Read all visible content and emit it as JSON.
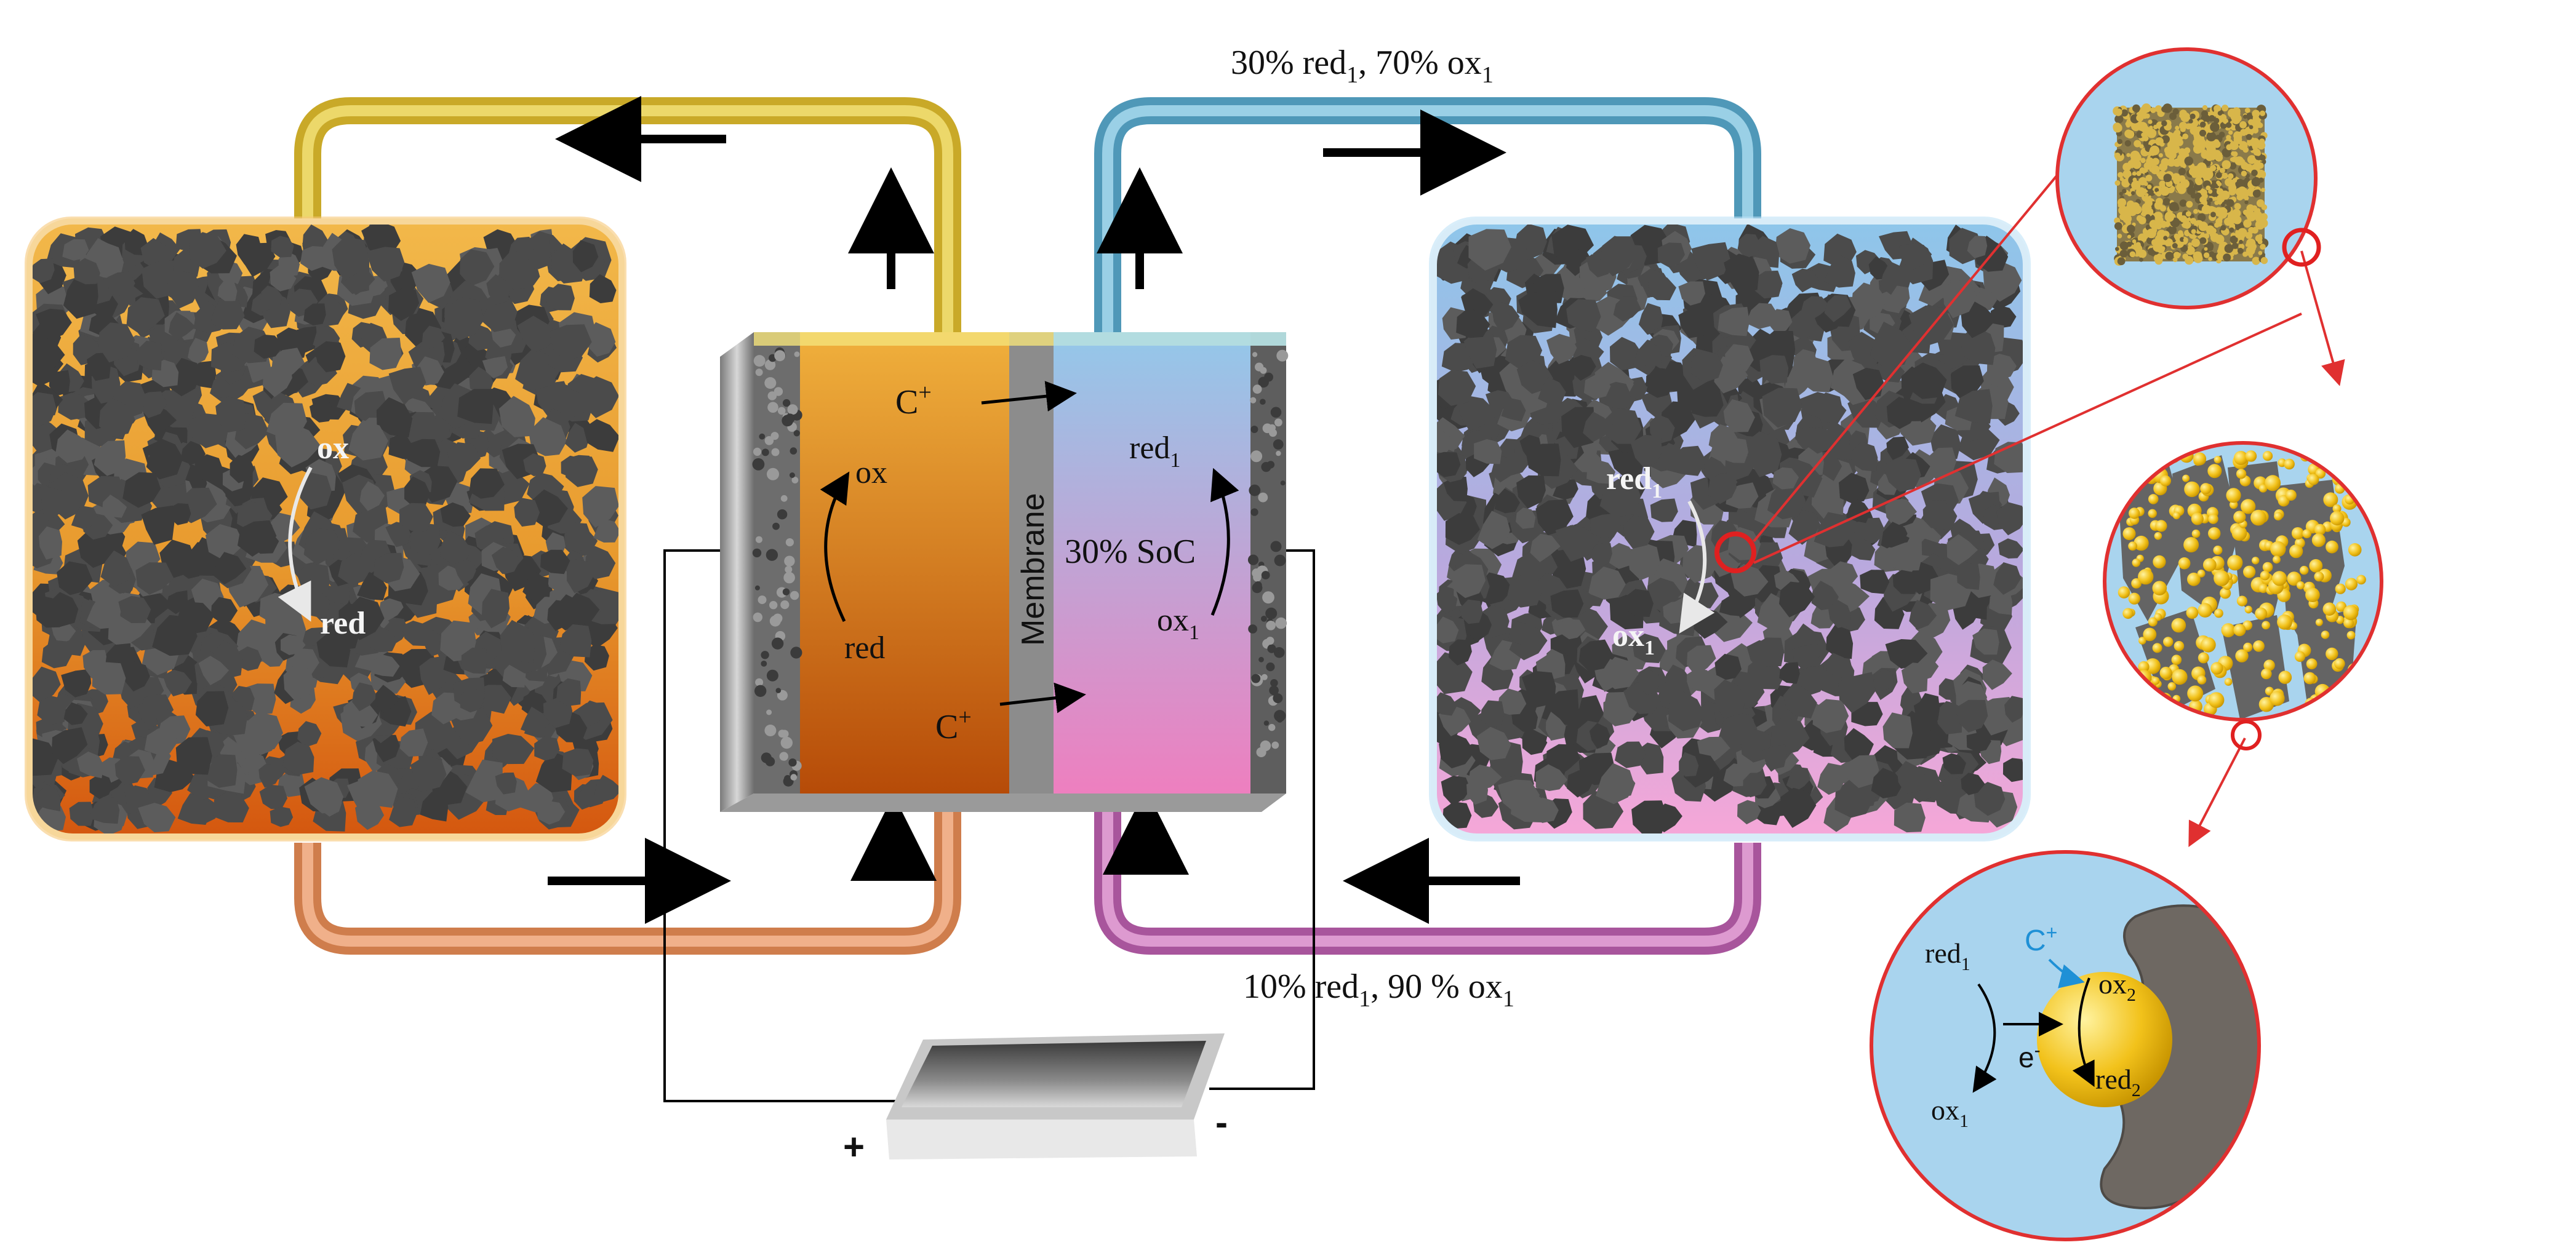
{
  "labels": {
    "top_flow": {
      "a": "30% red",
      "a_sub": "1",
      "b": ", 70% ox",
      "b_sub": "1"
    },
    "bottom_flow": {
      "a": "10% red",
      "a_sub": "1",
      "b": ", 90 % ox",
      "b_sub": "1"
    },
    "left_tank": {
      "ox": "ox",
      "red": "red"
    },
    "right_tank": {
      "red": "red",
      "red_sub": "1",
      "ox": "ox",
      "ox_sub": "1"
    },
    "cell": {
      "ox": "ox",
      "red": "red",
      "c_top": "C",
      "c_top_sup": "+",
      "c_bottom": "C",
      "c_bottom_sup": "+",
      "membrane": "Membrane",
      "red1": "red",
      "red1_sub": "1",
      "ox1": "ox",
      "ox1_sub": "1",
      "soc": "30% SoC"
    },
    "battery": {
      "plus": "+",
      "minus": "-"
    },
    "particle_zoom": {
      "red1": "red",
      "red1_sub": "1",
      "ox1": "ox",
      "ox1_sub": "1",
      "c_plus": "C",
      "c_plus_sup": "+",
      "e_minus": "e",
      "e_minus_sup": "-",
      "ox2": "ox",
      "ox2_sub": "2",
      "red2": "red",
      "red2_sub": "2"
    }
  },
  "colors": {
    "left_tank_top": "#f2b84a",
    "left_tank_bottom": "#d85e12",
    "right_tank_top": "#8ec6ea",
    "right_tank_bottom": "#f5a3d6",
    "yellow_pipe": "#d3b93a",
    "orange_pipe": "#d98a5a",
    "blue_pipe": "#5aa6c4",
    "pink_pipe": "#b862a9",
    "particle": "#4a4a4a",
    "zoom_outline": "#e03030",
    "c_plus_blue": "#1e90d6"
  }
}
